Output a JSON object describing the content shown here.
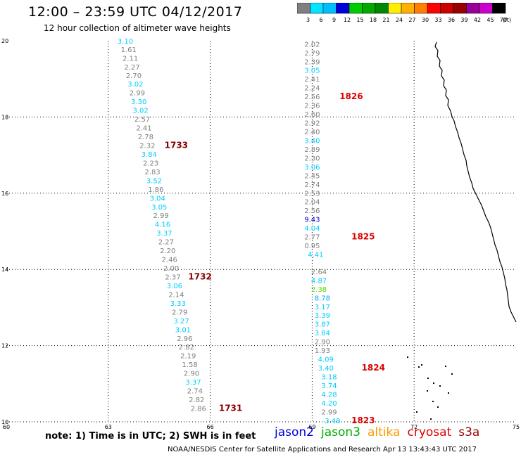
{
  "header": {
    "title": "12:00 – 23:59 UTC 04/12/2017",
    "subtitle": "12 hour collection of altimeter wave heights"
  },
  "color_scale": {
    "unit": "(ft)",
    "labels": [
      "3",
      "6",
      "9",
      "12",
      "15",
      "18",
      "21",
      "24",
      "27",
      "30",
      "33",
      "36",
      "39",
      "42",
      "45",
      "70"
    ],
    "colors": [
      "#808080",
      "#00e5ff",
      "#00bfff",
      "#0000dd",
      "#00cc00",
      "#00aa00",
      "#008800",
      "#ffee00",
      "#ffb000",
      "#ff8000",
      "#ff0000",
      "#cc0000",
      "#990000",
      "#990099",
      "#cc00cc",
      "#000000"
    ]
  },
  "map": {
    "lon_ticks": [
      "60",
      "63",
      "66",
      "69",
      "72",
      "75"
    ],
    "lat_ticks": [
      "10",
      "12",
      "14",
      "16",
      "18",
      "20"
    ]
  },
  "chart_data": {
    "type": "scatter",
    "x_axis": "longitude",
    "y_axis": "latitude",
    "xlim": [
      60,
      75
    ],
    "ylim": [
      10,
      20
    ],
    "tracks": [
      {
        "points": [
          {
            "lon": 63.5,
            "lat": 20.0,
            "value": "3.10",
            "c": "#00ccff"
          },
          {
            "lon": 63.6,
            "lat": 19.78,
            "value": "1.61",
            "c": "#808080"
          },
          {
            "lon": 63.65,
            "lat": 19.55,
            "value": "2.11",
            "c": "#808080"
          },
          {
            "lon": 63.7,
            "lat": 19.32,
            "value": "2.27",
            "c": "#808080"
          },
          {
            "lon": 63.75,
            "lat": 19.1,
            "value": "2.70",
            "c": "#808080"
          },
          {
            "lon": 63.8,
            "lat": 18.87,
            "value": "3.02",
            "c": "#00ccff"
          },
          {
            "lon": 63.85,
            "lat": 18.64,
            "value": "2.99",
            "c": "#808080"
          },
          {
            "lon": 63.9,
            "lat": 18.41,
            "value": "3.30",
            "c": "#00ccff"
          },
          {
            "lon": 63.95,
            "lat": 18.18,
            "value": "3.02",
            "c": "#00ccff"
          },
          {
            "lon": 64.0,
            "lat": 17.95,
            "value": "2.57",
            "c": "#808080"
          },
          {
            "lon": 64.05,
            "lat": 17.72,
            "value": "2.41",
            "c": "#808080"
          },
          {
            "lon": 64.1,
            "lat": 17.49,
            "value": "2.78",
            "c": "#808080"
          },
          {
            "lon": 64.15,
            "lat": 17.26,
            "value": "2.32",
            "c": "#808080"
          },
          {
            "lon": 64.2,
            "lat": 17.03,
            "value": "3.84",
            "c": "#00ccff"
          },
          {
            "lon": 64.25,
            "lat": 16.8,
            "value": "2.23",
            "c": "#808080"
          },
          {
            "lon": 64.3,
            "lat": 16.57,
            "value": "2.83",
            "c": "#808080"
          },
          {
            "lon": 64.35,
            "lat": 16.34,
            "value": "3.52",
            "c": "#00ccff"
          },
          {
            "lon": 64.4,
            "lat": 16.11,
            "value": "1.86",
            "c": "#808080"
          },
          {
            "lon": 64.45,
            "lat": 15.88,
            "value": "3.04",
            "c": "#00ccff"
          },
          {
            "lon": 64.5,
            "lat": 15.65,
            "value": "3.05",
            "c": "#00ccff"
          },
          {
            "lon": 64.55,
            "lat": 15.42,
            "value": "2.99",
            "c": "#808080"
          },
          {
            "lon": 64.6,
            "lat": 15.19,
            "value": "4.16",
            "c": "#00ccff"
          },
          {
            "lon": 64.65,
            "lat": 14.96,
            "value": "3.37",
            "c": "#00ccff"
          },
          {
            "lon": 64.7,
            "lat": 14.73,
            "value": "2.27",
            "c": "#808080"
          },
          {
            "lon": 64.75,
            "lat": 14.5,
            "value": "2.20",
            "c": "#808080"
          },
          {
            "lon": 64.8,
            "lat": 14.27,
            "value": "2.46",
            "c": "#808080"
          },
          {
            "lon": 64.85,
            "lat": 14.04,
            "value": "2.00",
            "c": "#808080"
          },
          {
            "lon": 64.9,
            "lat": 13.81,
            "value": "2.37",
            "c": "#808080"
          },
          {
            "lon": 64.95,
            "lat": 13.58,
            "value": "3.06",
            "c": "#00ccff"
          },
          {
            "lon": 65.0,
            "lat": 13.35,
            "value": "2.14",
            "c": "#808080"
          },
          {
            "lon": 65.05,
            "lat": 13.12,
            "value": "3.33",
            "c": "#00ccff"
          },
          {
            "lon": 65.1,
            "lat": 12.89,
            "value": "2.79",
            "c": "#808080"
          },
          {
            "lon": 65.15,
            "lat": 12.66,
            "value": "3.27",
            "c": "#00ccff"
          },
          {
            "lon": 65.2,
            "lat": 12.43,
            "value": "3.01",
            "c": "#00ccff"
          },
          {
            "lon": 65.25,
            "lat": 12.2,
            "value": "2.96",
            "c": "#808080"
          },
          {
            "lon": 65.3,
            "lat": 11.97,
            "value": "2.82",
            "c": "#808080"
          },
          {
            "lon": 65.35,
            "lat": 11.74,
            "value": "2.19",
            "c": "#808080"
          },
          {
            "lon": 65.4,
            "lat": 11.51,
            "value": "1.58",
            "c": "#808080"
          },
          {
            "lon": 65.45,
            "lat": 11.28,
            "value": "2.90",
            "c": "#808080"
          },
          {
            "lon": 65.5,
            "lat": 11.05,
            "value": "3.37",
            "c": "#00ccff"
          },
          {
            "lon": 65.55,
            "lat": 10.82,
            "value": "2.74",
            "c": "#808080"
          },
          {
            "lon": 65.6,
            "lat": 10.59,
            "value": "2.82",
            "c": "#808080"
          },
          {
            "lon": 65.65,
            "lat": 10.36,
            "value": "2.86",
            "c": "#808080"
          }
        ],
        "times": [
          {
            "lon": 65.0,
            "lat": 17.26,
            "text": "1733",
            "c": "#880000"
          },
          {
            "lon": 65.7,
            "lat": 13.81,
            "text": "1732",
            "c": "#880000"
          },
          {
            "lon": 66.6,
            "lat": 10.36,
            "text": "1731",
            "c": "#880000"
          }
        ]
      },
      {
        "points": [
          {
            "lon": 69.0,
            "lat": 19.92,
            "value": "2.02",
            "c": "#808080"
          },
          {
            "lon": 69.0,
            "lat": 19.69,
            "value": "2.79",
            "c": "#808080"
          },
          {
            "lon": 69.0,
            "lat": 19.46,
            "value": "2.39",
            "c": "#808080"
          },
          {
            "lon": 69.0,
            "lat": 19.23,
            "value": "3.05",
            "c": "#00ccff"
          },
          {
            "lon": 69.0,
            "lat": 19.0,
            "value": "2.41",
            "c": "#808080"
          },
          {
            "lon": 69.0,
            "lat": 18.77,
            "value": "2.24",
            "c": "#808080"
          },
          {
            "lon": 69.0,
            "lat": 18.54,
            "value": "2.56",
            "c": "#808080"
          },
          {
            "lon": 69.0,
            "lat": 18.31,
            "value": "2.36",
            "c": "#808080"
          },
          {
            "lon": 69.0,
            "lat": 18.08,
            "value": "2.60",
            "c": "#808080"
          },
          {
            "lon": 69.0,
            "lat": 17.85,
            "value": "2.92",
            "c": "#808080"
          },
          {
            "lon": 69.0,
            "lat": 17.62,
            "value": "2.40",
            "c": "#808080"
          },
          {
            "lon": 69.0,
            "lat": 17.39,
            "value": "3.40",
            "c": "#00ccff"
          },
          {
            "lon": 69.0,
            "lat": 17.16,
            "value": "2.89",
            "c": "#808080"
          },
          {
            "lon": 69.0,
            "lat": 16.93,
            "value": "2.30",
            "c": "#808080"
          },
          {
            "lon": 69.0,
            "lat": 16.7,
            "value": "3.06",
            "c": "#00ccff"
          },
          {
            "lon": 69.0,
            "lat": 16.47,
            "value": "2.45",
            "c": "#808080"
          },
          {
            "lon": 69.0,
            "lat": 16.24,
            "value": "2.74",
            "c": "#808080"
          },
          {
            "lon": 69.0,
            "lat": 16.01,
            "value": "2.53",
            "c": "#808080"
          },
          {
            "lon": 69.0,
            "lat": 15.78,
            "value": "2.04",
            "c": "#808080"
          },
          {
            "lon": 69.0,
            "lat": 15.55,
            "value": "2.56",
            "c": "#808080"
          },
          {
            "lon": 69.0,
            "lat": 15.32,
            "value": "9.43",
            "c": "#0000cc"
          },
          {
            "lon": 69.0,
            "lat": 15.09,
            "value": "4.04",
            "c": "#00ccff"
          },
          {
            "lon": 69.0,
            "lat": 14.86,
            "value": "2.77",
            "c": "#808080"
          },
          {
            "lon": 69.0,
            "lat": 14.63,
            "value": "0.95",
            "c": "#808080"
          },
          {
            "lon": 69.1,
            "lat": 14.4,
            "value": "4.41",
            "c": "#00ccff"
          },
          {
            "lon": 69.2,
            "lat": 13.95,
            "value": "2.64",
            "c": "#808080"
          },
          {
            "lon": 69.2,
            "lat": 13.72,
            "value": "4.87",
            "c": "#00ccff"
          },
          {
            "lon": 69.2,
            "lat": 13.49,
            "value": "2.38",
            "c": "#55dd00"
          },
          {
            "lon": 69.3,
            "lat": 13.26,
            "value": "8.78",
            "c": "#00aaff"
          },
          {
            "lon": 69.3,
            "lat": 13.03,
            "value": "3.17",
            "c": "#00ccff"
          },
          {
            "lon": 69.3,
            "lat": 12.8,
            "value": "3.39",
            "c": "#00ccff"
          },
          {
            "lon": 69.3,
            "lat": 12.57,
            "value": "3.87",
            "c": "#00ccff"
          },
          {
            "lon": 69.3,
            "lat": 12.34,
            "value": "3.84",
            "c": "#00ccff"
          },
          {
            "lon": 69.3,
            "lat": 12.11,
            "value": "2.90",
            "c": "#808080"
          },
          {
            "lon": 69.3,
            "lat": 11.88,
            "value": "1.93",
            "c": "#808080"
          },
          {
            "lon": 69.4,
            "lat": 11.65,
            "value": "4.09",
            "c": "#00ccff"
          },
          {
            "lon": 69.4,
            "lat": 11.42,
            "value": "3.40",
            "c": "#00ccff"
          },
          {
            "lon": 69.5,
            "lat": 11.19,
            "value": "3.18",
            "c": "#00ccff"
          },
          {
            "lon": 69.5,
            "lat": 10.96,
            "value": "3.74",
            "c": "#00ccff"
          },
          {
            "lon": 69.5,
            "lat": 10.73,
            "value": "4.28",
            "c": "#00ccff"
          },
          {
            "lon": 69.5,
            "lat": 10.5,
            "value": "4.20",
            "c": "#00ccff"
          },
          {
            "lon": 69.5,
            "lat": 10.27,
            "value": "2.99",
            "c": "#808080"
          },
          {
            "lon": 69.6,
            "lat": 10.04,
            "value": "3.48",
            "c": "#00ccff"
          }
        ],
        "times": [
          {
            "lon": 70.15,
            "lat": 18.54,
            "text": "1826",
            "c": "#dd0000"
          },
          {
            "lon": 70.5,
            "lat": 14.86,
            "text": "1825",
            "c": "#dd0000"
          },
          {
            "lon": 70.8,
            "lat": 11.42,
            "text": "1824",
            "c": "#dd0000"
          },
          {
            "lon": 70.5,
            "lat": 10.04,
            "text": "1823",
            "c": "#dd0000"
          }
        ]
      }
    ]
  },
  "note": "note:  1) Time is in UTC;  2) SWH is in feet",
  "satellites": [
    {
      "name": "jason2",
      "color": "#0000dd"
    },
    {
      "name": "jason3",
      "color": "#00aa00"
    },
    {
      "name": "altika",
      "color": "#ff9900"
    },
    {
      "name": "cryosat",
      "color": "#dd0000"
    },
    {
      "name": "s3a",
      "color": "#990000"
    }
  ],
  "footer": "NOAA/NESDIS Center for Satellite Applications and Research   Apr 13 13:43:43 UTC 2017"
}
